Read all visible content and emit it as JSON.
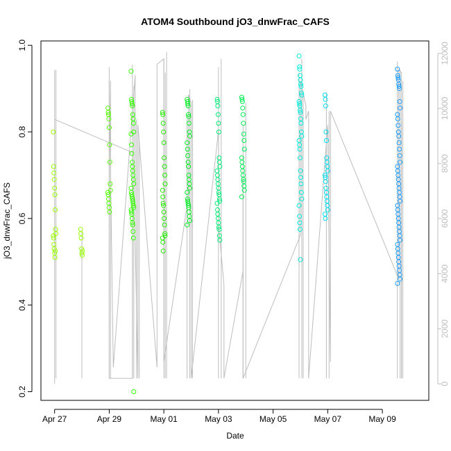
{
  "chart_data": {
    "type": "scatter",
    "title": "ATOM4 Southbound jO3_dnwFrac_CAFS",
    "xlabel": "Date",
    "ylabel": "jO3_dnwFrac_CAFS",
    "xlim": [
      -0.5,
      13.7
    ],
    "ylim": [
      0.18,
      1.01
    ],
    "y2lim": [
      -600,
      12450
    ],
    "x_ticks": [
      {
        "value": 0,
        "label": "Apr 27"
      },
      {
        "value": 2,
        "label": "Apr 29"
      },
      {
        "value": 4,
        "label": "May 01"
      },
      {
        "value": 6,
        "label": "May 03"
      },
      {
        "value": 8,
        "label": "May 05"
      },
      {
        "value": 10,
        "label": "May 07"
      },
      {
        "value": 12,
        "label": "May 09"
      }
    ],
    "y_ticks": [
      0.2,
      0.4,
      0.6,
      0.8,
      1.0
    ],
    "y_tick_labels": [
      "0.2",
      "0.4",
      "0.6",
      "0.8",
      "1.0"
    ],
    "y2_ticks": [
      0,
      2000,
      4000,
      6000,
      8000,
      10000,
      12000
    ],
    "y2_tick_labels": [
      "0",
      "2000",
      "4000",
      "6000",
      "8000",
      "10000",
      "12000"
    ],
    "clusters": [
      {
        "x": 0.0,
        "y": [
          0.8,
          0.72,
          0.705,
          0.69,
          0.67,
          0.655,
          0.62,
          0.575,
          0.565,
          0.56,
          0.555,
          0.54,
          0.53,
          0.52,
          0.51,
          0.525
        ],
        "color": "#99ff00"
      },
      {
        "x": 1.0,
        "y": [
          0.575,
          0.565,
          0.555,
          0.53,
          0.52,
          0.515,
          0.525
        ],
        "color": "#99ff00"
      },
      {
        "x": 2.0,
        "y": [
          0.855,
          0.845,
          0.84,
          0.83,
          0.81,
          0.77,
          0.73,
          0.68,
          0.665,
          0.66,
          0.655,
          0.645,
          0.635,
          0.625,
          0.615
        ],
        "color": "#55ff00"
      },
      {
        "x": 2.85,
        "y": [
          0.94,
          0.875,
          0.87,
          0.865,
          0.86,
          0.84,
          0.83,
          0.82,
          0.8,
          0.795,
          0.77,
          0.75,
          0.73,
          0.72,
          0.71,
          0.7,
          0.69,
          0.68,
          0.67,
          0.66,
          0.655,
          0.65,
          0.645,
          0.64,
          0.635,
          0.63,
          0.625,
          0.62,
          0.615,
          0.61,
          0.6,
          0.59,
          0.585,
          0.57,
          0.555,
          0.2
        ],
        "color": "#33ff00"
      },
      {
        "x": 4.0,
        "y": [
          0.845,
          0.84,
          0.82,
          0.8,
          0.775,
          0.74,
          0.72,
          0.7,
          0.68,
          0.665,
          0.65,
          0.635,
          0.63,
          0.615,
          0.6,
          0.585,
          0.565,
          0.56,
          0.555,
          0.545,
          0.525
        ],
        "color": "#22ee00"
      },
      {
        "x": 4.9,
        "y": [
          0.875,
          0.87,
          0.865,
          0.86,
          0.84,
          0.835,
          0.82,
          0.8,
          0.79,
          0.775,
          0.76,
          0.745,
          0.73,
          0.72,
          0.7,
          0.69,
          0.68,
          0.67,
          0.66,
          0.645,
          0.64,
          0.635,
          0.63,
          0.625,
          0.615,
          0.605,
          0.595,
          0.585
        ],
        "color": "#00ee22"
      },
      {
        "x": 6.0,
        "y": [
          0.875,
          0.87,
          0.86,
          0.84,
          0.82,
          0.8,
          0.74,
          0.73,
          0.72,
          0.71,
          0.7,
          0.69,
          0.68,
          0.67,
          0.66,
          0.655,
          0.645,
          0.64,
          0.635,
          0.62,
          0.61,
          0.6,
          0.59,
          0.58,
          0.575,
          0.56,
          0.55
        ],
        "color": "#00ee77"
      },
      {
        "x": 6.9,
        "y": [
          0.88,
          0.875,
          0.87,
          0.855,
          0.84,
          0.82,
          0.795,
          0.78,
          0.76,
          0.74,
          0.73,
          0.72,
          0.71,
          0.7,
          0.69,
          0.685,
          0.675,
          0.665,
          0.65
        ],
        "color": "#00ee55"
      },
      {
        "x": 9.0,
        "y": [
          0.975,
          0.95,
          0.945,
          0.93,
          0.92,
          0.91,
          0.905,
          0.89,
          0.885,
          0.87,
          0.865,
          0.86,
          0.85,
          0.845,
          0.83,
          0.82,
          0.8,
          0.79,
          0.78,
          0.77,
          0.76,
          0.74,
          0.71,
          0.695,
          0.68,
          0.66,
          0.645,
          0.63,
          0.605,
          0.59,
          0.575,
          0.505
        ],
        "color": "#00eedd"
      },
      {
        "x": 9.95,
        "y": [
          0.885,
          0.875,
          0.86,
          0.8,
          0.78,
          0.74,
          0.73,
          0.72,
          0.71,
          0.7,
          0.695,
          0.685,
          0.67,
          0.66,
          0.65,
          0.64,
          0.63,
          0.62,
          0.61,
          0.6
        ],
        "color": "#00ddee"
      },
      {
        "x": 12.6,
        "y": [
          0.945,
          0.93,
          0.925,
          0.92,
          0.91,
          0.905,
          0.9,
          0.87,
          0.855,
          0.84,
          0.83,
          0.815,
          0.8,
          0.79,
          0.775,
          0.76,
          0.745,
          0.73,
          0.72,
          0.71,
          0.7,
          0.69,
          0.68,
          0.67,
          0.66,
          0.65,
          0.64,
          0.63,
          0.62,
          0.61,
          0.6,
          0.59,
          0.58,
          0.57,
          0.56,
          0.55,
          0.54,
          0.53,
          0.52,
          0.51,
          0.5,
          0.49,
          0.48,
          0.47,
          0.46,
          0.45
        ],
        "color": "#1b9eff"
      }
    ],
    "altitude_path": [
      [
        0.0,
        0
      ],
      [
        0.0,
        11400
      ],
      [
        0.0,
        9600
      ],
      [
        2.85,
        8400
      ],
      [
        2.85,
        200
      ],
      [
        2.0,
        200
      ],
      [
        2.0,
        11000
      ],
      [
        2.15,
        600
      ],
      [
        2.95,
        11200
      ],
      [
        2.95,
        5200
      ],
      [
        3.05,
        200
      ],
      [
        3.05,
        9400
      ],
      [
        3.75,
        600
      ],
      [
        3.75,
        11600
      ],
      [
        4.0,
        11800
      ],
      [
        4.0,
        800
      ],
      [
        4.9,
        6800
      ],
      [
        4.9,
        10500
      ],
      [
        5.0,
        10200
      ],
      [
        5.0,
        200
      ],
      [
        6.0,
        9200
      ],
      [
        6.0,
        5800
      ],
      [
        6.2,
        3600
      ],
      [
        6.2,
        200
      ],
      [
        6.9,
        4100
      ],
      [
        6.9,
        7400
      ],
      [
        6.9,
        200
      ],
      [
        9.0,
        5400
      ],
      [
        9.0,
        11000
      ],
      [
        9.2,
        10100
      ],
      [
        9.2,
        9600
      ],
      [
        9.3,
        9900
      ],
      [
        9.3,
        200
      ],
      [
        10.0,
        9400
      ],
      [
        10.1,
        800
      ],
      [
        10.1,
        9900
      ],
      [
        12.6,
        3800
      ],
      [
        12.6,
        11400
      ],
      [
        12.7,
        11300
      ],
      [
        12.7,
        200
      ]
    ],
    "altitude_spikes": [
      [
        0.05,
        11400
      ],
      [
        1.0,
        5500
      ],
      [
        1.0,
        200
      ],
      [
        2.0,
        11500
      ],
      [
        2.05,
        11000
      ],
      [
        2.85,
        11600
      ],
      [
        2.9,
        10800
      ],
      [
        3.0,
        9600
      ],
      [
        3.1,
        8800
      ],
      [
        4.0,
        11800
      ],
      [
        4.1,
        12050
      ],
      [
        4.05,
        11300
      ],
      [
        4.95,
        10700
      ],
      [
        5.05,
        10300
      ],
      [
        4.85,
        9600
      ],
      [
        6.0,
        11500
      ],
      [
        6.1,
        11800
      ],
      [
        6.9,
        9400
      ],
      [
        7.0,
        10200
      ],
      [
        8.95,
        11300
      ],
      [
        9.05,
        11800
      ],
      [
        9.1,
        10500
      ],
      [
        9.95,
        10600
      ],
      [
        10.05,
        9900
      ],
      [
        12.55,
        11700
      ],
      [
        12.65,
        11400
      ],
      [
        12.75,
        11000
      ],
      [
        12.7,
        9500
      ]
    ],
    "series": [
      {
        "name": "jO3_dnwFrac_CAFS",
        "style": "circle markers colored by time"
      },
      {
        "name": "Altitude",
        "style": "grey line, right axis"
      }
    ]
  }
}
